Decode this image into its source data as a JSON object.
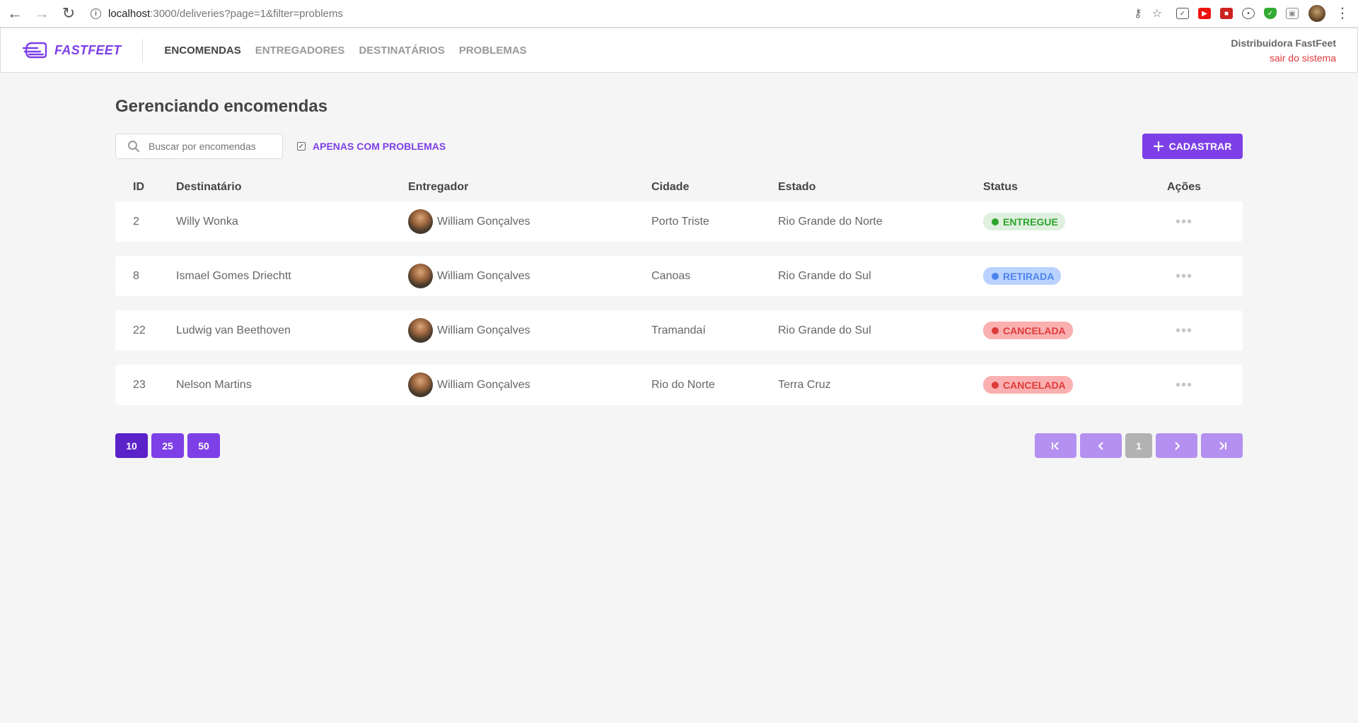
{
  "browser": {
    "url_host": "localhost",
    "url_rest": ":3000/deliveries?page=1&filter=problems"
  },
  "header": {
    "logo_text": "FASTFEET",
    "nav": [
      {
        "label": "ENCOMENDAS",
        "active": true
      },
      {
        "label": "ENTREGADORES",
        "active": false
      },
      {
        "label": "DESTINATÁRIOS",
        "active": false
      },
      {
        "label": "PROBLEMAS",
        "active": false
      }
    ],
    "user_name": "Distribuidora FastFeet",
    "logout_label": "sair do sistema"
  },
  "page": {
    "title": "Gerenciando encomendas",
    "search_placeholder": "Buscar por encomendas",
    "filter_label": "APENAS COM PROBLEMAS",
    "filter_checked": true,
    "add_label": "CADASTRAR"
  },
  "table": {
    "headers": [
      "ID",
      "Destinatário",
      "Entregador",
      "Cidade",
      "Estado",
      "Status",
      "Ações"
    ],
    "rows": [
      {
        "id": "2",
        "recipient": "Willy Wonka",
        "deliveryman": "William Gonçalves",
        "city": "Porto Triste",
        "state": "Rio Grande do Norte",
        "status": "ENTREGUE",
        "status_color": "#2ca42b",
        "status_bg": "#dff0df"
      },
      {
        "id": "8",
        "recipient": "Ismael Gomes Driechtt",
        "deliveryman": "William Gonçalves",
        "city": "Canoas",
        "state": "Rio Grande do Sul",
        "status": "RETIRADA",
        "status_color": "#4d85ee",
        "status_bg": "#bad2ff"
      },
      {
        "id": "22",
        "recipient": "Ludwig van Beethoven",
        "deliveryman": "William Gonçalves",
        "city": "Tramandaí",
        "state": "Rio Grande do Sul",
        "status": "CANCELADA",
        "status_color": "#de3b3b",
        "status_bg": "#fab0b0"
      },
      {
        "id": "23",
        "recipient": "Nelson Martins",
        "deliveryman": "William Gonçalves",
        "city": "Rio do Norte",
        "state": "Terra Cruz",
        "status": "CANCELADA",
        "status_color": "#de3b3b",
        "status_bg": "#fab0b0"
      }
    ]
  },
  "pagination": {
    "page_sizes": [
      "10",
      "25",
      "50"
    ],
    "active_size": "10",
    "current_page": "1"
  },
  "colors": {
    "accent": "#7d40e7"
  }
}
